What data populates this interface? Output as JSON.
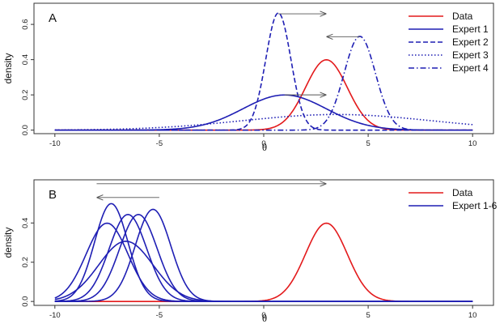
{
  "chart_data": [
    {
      "type": "line",
      "panel_label": "A",
      "xlabel": "θ",
      "ylabel": "density",
      "xlim": [
        -11,
        11
      ],
      "ylim": [
        -0.02,
        0.72
      ],
      "x_ticks": [
        -10,
        -5,
        0,
        5,
        10
      ],
      "y_ticks": [
        0.0,
        0.2,
        0.4,
        0.6
      ],
      "y_tick_labels": [
        "0.0",
        "0.2",
        "0.4",
        "0.6"
      ],
      "grid": false,
      "legend_position": "top-right",
      "series": [
        {
          "name": "Data",
          "color": "#e31a1c",
          "dash": "solid",
          "mean": 3.0,
          "sd": 1.0
        },
        {
          "name": "Expert 1",
          "color": "#1f1fb4",
          "dash": "solid",
          "mean": 1.0,
          "sd": 2.0
        },
        {
          "name": "Expert 2",
          "color": "#1f1fb4",
          "dash": "dashed",
          "mean": 0.7,
          "sd": 0.6
        },
        {
          "name": "Expert 3",
          "color": "#1f1fb4",
          "dash": "dotted",
          "mean": 3.5,
          "sd": 4.5
        },
        {
          "name": "Expert 4",
          "color": "#1f1fb4",
          "dash": "dotdash",
          "mean": 4.6,
          "sd": 0.75
        }
      ],
      "arrows": [
        {
          "from": [
            0.7,
            0.66
          ],
          "to": [
            3.0,
            0.66
          ]
        },
        {
          "from": [
            4.6,
            0.53
          ],
          "to": [
            3.0,
            0.53
          ]
        },
        {
          "from": [
            1.0,
            0.2
          ],
          "to": [
            3.0,
            0.2
          ]
        }
      ]
    },
    {
      "type": "line",
      "panel_label": "B",
      "xlabel": "θ",
      "ylabel": "density",
      "xlim": [
        -11,
        11
      ],
      "ylim": [
        -0.02,
        0.62
      ],
      "x_ticks": [
        -10,
        -5,
        0,
        5,
        10
      ],
      "y_ticks": [
        0.0,
        0.2,
        0.4
      ],
      "y_tick_labels": [
        "0.0",
        "0.2",
        "0.4"
      ],
      "grid": false,
      "legend_position": "top-right",
      "series": [
        {
          "name": "Data",
          "color": "#e31a1c",
          "dash": "solid",
          "curves": [
            {
              "mean": 3.0,
              "sd": 1.0
            }
          ]
        },
        {
          "name": "Expert 1-6",
          "color": "#1f1fb4",
          "dash": "solid",
          "curves": [
            {
              "mean": -7.3,
              "sd": 0.8
            },
            {
              "mean": -7.5,
              "sd": 1.0
            },
            {
              "mean": -6.6,
              "sd": 1.3
            },
            {
              "mean": -6.0,
              "sd": 0.9
            },
            {
              "mean": -6.5,
              "sd": 0.9
            },
            {
              "mean": -5.3,
              "sd": 0.85
            }
          ]
        }
      ],
      "arrows": [
        {
          "from": [
            -5.0,
            0.53
          ],
          "to": [
            -8.0,
            0.53
          ]
        },
        {
          "from": [
            -8.0,
            0.6
          ],
          "to": [
            3.0,
            0.6
          ]
        }
      ]
    }
  ]
}
